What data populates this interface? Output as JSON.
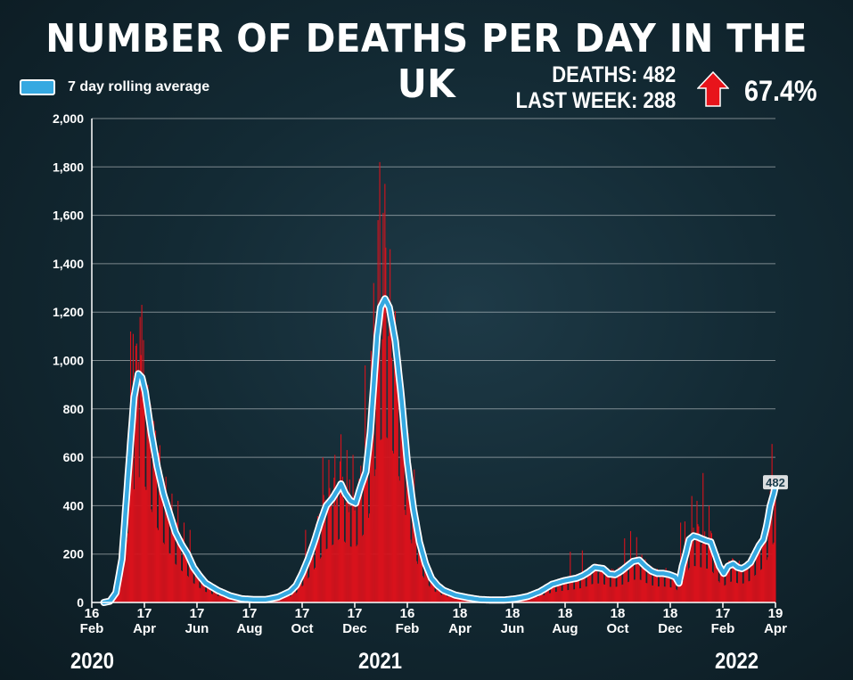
{
  "header": {
    "title": "NUMBER OF DEATHS PER DAY IN THE UK",
    "legend_label": "7 day rolling average",
    "deaths_label": "DEATHS: 482",
    "last_week_label": "LAST WEEK: 288",
    "change_pct": "67.4%",
    "change_direction": "up",
    "arrow_color": "#e8141b"
  },
  "colors": {
    "bars": "#d8121c",
    "average_line": "#36a9e1",
    "outline": "#ffffff"
  },
  "chart_data": {
    "type": "bar",
    "ylim": [
      0,
      2000
    ],
    "yticks": [
      "0",
      "200",
      "400",
      "600",
      "800",
      "1,000",
      "1,200",
      "1,400",
      "1,600",
      "1,800",
      "2,000"
    ],
    "xlim": [
      "2020-02-16",
      "2022-04-19"
    ],
    "xticks": [
      {
        "date": "2020-02-16",
        "day": "16",
        "month": "Feb"
      },
      {
        "date": "2020-04-17",
        "day": "17",
        "month": "Apr"
      },
      {
        "date": "2020-06-17",
        "day": "17",
        "month": "Jun"
      },
      {
        "date": "2020-08-17",
        "day": "17",
        "month": "Aug"
      },
      {
        "date": "2020-10-17",
        "day": "17",
        "month": "Oct"
      },
      {
        "date": "2020-12-17",
        "day": "17",
        "month": "Dec"
      },
      {
        "date": "2021-02-16",
        "day": "16",
        "month": "Feb"
      },
      {
        "date": "2021-04-18",
        "day": "18",
        "month": "Apr"
      },
      {
        "date": "2021-06-18",
        "day": "18",
        "month": "Jun"
      },
      {
        "date": "2021-08-18",
        "day": "18",
        "month": "Aug"
      },
      {
        "date": "2021-10-18",
        "day": "18",
        "month": "Oct"
      },
      {
        "date": "2021-12-18",
        "day": "18",
        "month": "Dec"
      },
      {
        "date": "2022-02-17",
        "day": "17",
        "month": "Feb"
      },
      {
        "date": "2022-04-19",
        "day": "19",
        "month": "Apr"
      }
    ],
    "years": [
      {
        "label": "2020",
        "date": "2020-02-16"
      },
      {
        "label": "2021",
        "date": "2021-01-15"
      },
      {
        "label": "2022",
        "date": "2022-03-05"
      }
    ],
    "series": [
      {
        "name": "7 day rolling average",
        "type": "line",
        "points": [
          [
            "2020-03-01",
            0
          ],
          [
            "2020-03-08",
            5
          ],
          [
            "2020-03-15",
            40
          ],
          [
            "2020-03-22",
            180
          ],
          [
            "2020-03-29",
            520
          ],
          [
            "2020-04-05",
            850
          ],
          [
            "2020-04-10",
            945
          ],
          [
            "2020-04-14",
            930
          ],
          [
            "2020-04-18",
            870
          ],
          [
            "2020-04-25",
            700
          ],
          [
            "2020-05-02",
            560
          ],
          [
            "2020-05-09",
            450
          ],
          [
            "2020-05-16",
            370
          ],
          [
            "2020-05-23",
            290
          ],
          [
            "2020-05-30",
            240
          ],
          [
            "2020-06-06",
            200
          ],
          [
            "2020-06-13",
            145
          ],
          [
            "2020-06-20",
            110
          ],
          [
            "2020-06-27",
            80
          ],
          [
            "2020-07-04",
            65
          ],
          [
            "2020-07-11",
            50
          ],
          [
            "2020-07-25",
            28
          ],
          [
            "2020-08-08",
            15
          ],
          [
            "2020-08-22",
            12
          ],
          [
            "2020-09-05",
            12
          ],
          [
            "2020-09-19",
            22
          ],
          [
            "2020-10-03",
            45
          ],
          [
            "2020-10-10",
            70
          ],
          [
            "2020-10-17",
            120
          ],
          [
            "2020-10-24",
            180
          ],
          [
            "2020-10-31",
            250
          ],
          [
            "2020-11-07",
            330
          ],
          [
            "2020-11-14",
            400
          ],
          [
            "2020-11-21",
            430
          ],
          [
            "2020-11-28",
            470
          ],
          [
            "2020-12-01",
            490
          ],
          [
            "2020-12-06",
            450
          ],
          [
            "2020-12-12",
            420
          ],
          [
            "2020-12-18",
            410
          ],
          [
            "2020-12-24",
            480
          ],
          [
            "2020-12-30",
            540
          ],
          [
            "2021-01-04",
            700
          ],
          [
            "2021-01-08",
            900
          ],
          [
            "2021-01-12",
            1100
          ],
          [
            "2021-01-16",
            1220
          ],
          [
            "2021-01-21",
            1255
          ],
          [
            "2021-01-26",
            1220
          ],
          [
            "2021-02-02",
            1080
          ],
          [
            "2021-02-09",
            850
          ],
          [
            "2021-02-16",
            580
          ],
          [
            "2021-02-23",
            390
          ],
          [
            "2021-03-02",
            250
          ],
          [
            "2021-03-09",
            160
          ],
          [
            "2021-03-16",
            100
          ],
          [
            "2021-03-23",
            70
          ],
          [
            "2021-03-30",
            50
          ],
          [
            "2021-04-13",
            30
          ],
          [
            "2021-04-27",
            20
          ],
          [
            "2021-05-11",
            12
          ],
          [
            "2021-05-25",
            10
          ],
          [
            "2021-06-08",
            10
          ],
          [
            "2021-06-22",
            15
          ],
          [
            "2021-07-06",
            25
          ],
          [
            "2021-07-20",
            45
          ],
          [
            "2021-08-03",
            75
          ],
          [
            "2021-08-17",
            90
          ],
          [
            "2021-08-31",
            100
          ],
          [
            "2021-09-07",
            110
          ],
          [
            "2021-09-14",
            125
          ],
          [
            "2021-09-21",
            145
          ],
          [
            "2021-10-01",
            140
          ],
          [
            "2021-10-08",
            118
          ],
          [
            "2021-10-15",
            115
          ],
          [
            "2021-10-22",
            130
          ],
          [
            "2021-10-29",
            150
          ],
          [
            "2021-11-05",
            170
          ],
          [
            "2021-11-12",
            175
          ],
          [
            "2021-11-19",
            150
          ],
          [
            "2021-11-26",
            130
          ],
          [
            "2021-12-03",
            120
          ],
          [
            "2021-12-10",
            120
          ],
          [
            "2021-12-17",
            115
          ],
          [
            "2021-12-24",
            105
          ],
          [
            "2021-12-28",
            80
          ],
          [
            "2022-01-01",
            150
          ],
          [
            "2022-01-05",
            200
          ],
          [
            "2022-01-09",
            260
          ],
          [
            "2022-01-14",
            275
          ],
          [
            "2022-01-19",
            270
          ],
          [
            "2022-01-24",
            262
          ],
          [
            "2022-01-29",
            255
          ],
          [
            "2022-02-03",
            250
          ],
          [
            "2022-02-08",
            200
          ],
          [
            "2022-02-13",
            150
          ],
          [
            "2022-02-18",
            120
          ],
          [
            "2022-02-23",
            150
          ],
          [
            "2022-03-01",
            160
          ],
          [
            "2022-03-06",
            145
          ],
          [
            "2022-03-11",
            140
          ],
          [
            "2022-03-16",
            150
          ],
          [
            "2022-03-21",
            165
          ],
          [
            "2022-03-26",
            200
          ],
          [
            "2022-03-31",
            235
          ],
          [
            "2022-04-05",
            260
          ],
          [
            "2022-04-09",
            320
          ],
          [
            "2022-04-13",
            400
          ],
          [
            "2022-04-17",
            450
          ],
          [
            "2022-04-19",
            482
          ]
        ]
      }
    ],
    "annotations": [
      {
        "date": "2022-04-19",
        "value": 482,
        "label": "482"
      }
    ],
    "bar_spikes": [
      [
        "2020-04-01",
        1120
      ],
      [
        "2020-04-04",
        1110
      ],
      [
        "2020-04-08",
        1070
      ],
      [
        "2020-04-12",
        1180
      ],
      [
        "2020-04-14",
        1230
      ],
      [
        "2020-04-21",
        900
      ],
      [
        "2020-04-28",
        750
      ],
      [
        "2020-05-05",
        650
      ],
      [
        "2020-05-12",
        520
      ],
      [
        "2020-05-19",
        450
      ],
      [
        "2020-05-26",
        420
      ],
      [
        "2020-06-02",
        330
      ],
      [
        "2020-06-09",
        300
      ],
      [
        "2020-10-21",
        300
      ],
      [
        "2020-11-10",
        600
      ],
      [
        "2020-11-17",
        590
      ],
      [
        "2020-11-24",
        610
      ],
      [
        "2020-12-01",
        695
      ],
      [
        "2020-12-08",
        630
      ],
      [
        "2020-12-15",
        610
      ],
      [
        "2020-12-29",
        980
      ],
      [
        "2021-01-05",
        1040
      ],
      [
        "2021-01-08",
        1320
      ],
      [
        "2021-01-13",
        1580
      ],
      [
        "2021-01-15",
        1820
      ],
      [
        "2021-01-19",
        1610
      ],
      [
        "2021-01-21",
        1730
      ],
      [
        "2021-01-27",
        1460
      ],
      [
        "2021-02-03",
        1100
      ],
      [
        "2021-02-10",
        850
      ],
      [
        "2021-02-17",
        700
      ],
      [
        "2021-02-24",
        550
      ],
      [
        "2021-08-24",
        210
      ],
      [
        "2021-09-07",
        215
      ],
      [
        "2021-10-26",
        265
      ],
      [
        "2021-11-02",
        295
      ],
      [
        "2021-11-09",
        270
      ],
      [
        "2021-12-30",
        330
      ],
      [
        "2022-01-04",
        335
      ],
      [
        "2022-01-12",
        440
      ],
      [
        "2022-01-18",
        420
      ],
      [
        "2022-01-25",
        535
      ],
      [
        "2022-02-01",
        400
      ],
      [
        "2022-04-12",
        420
      ],
      [
        "2022-04-15",
        655
      ]
    ]
  }
}
